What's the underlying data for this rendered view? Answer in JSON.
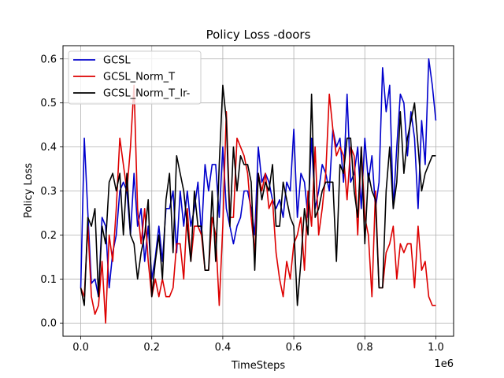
{
  "chart_data": {
    "type": "line",
    "title": "Policy Loss -doors",
    "xlabel": "TimeSteps",
    "ylabel": "Policy Loss",
    "x_offset_label": "1e6",
    "xlim": [
      -0.05,
      1.05
    ],
    "ylim": [
      -0.03,
      0.63
    ],
    "xticks": [
      0.0,
      0.2,
      0.4,
      0.6,
      0.8,
      1.0
    ],
    "xtick_labels": [
      "0.0",
      "0.2",
      "0.4",
      "0.6",
      "0.8",
      "1.0"
    ],
    "yticks": [
      0.0,
      0.1,
      0.2,
      0.3,
      0.4,
      0.5,
      0.6
    ],
    "ytick_labels": [
      "0.0",
      "0.1",
      "0.2",
      "0.3",
      "0.4",
      "0.5",
      "0.6"
    ],
    "grid": true,
    "legend_position": "top-left",
    "x": [
      0.0,
      0.01,
      0.02,
      0.03,
      0.04,
      0.05,
      0.06,
      0.07,
      0.08,
      0.09,
      0.1,
      0.11,
      0.12,
      0.13,
      0.14,
      0.15,
      0.16,
      0.17,
      0.18,
      0.19,
      0.2,
      0.21,
      0.22,
      0.23,
      0.24,
      0.25,
      0.26,
      0.27,
      0.28,
      0.29,
      0.3,
      0.31,
      0.32,
      0.33,
      0.34,
      0.35,
      0.36,
      0.37,
      0.38,
      0.39,
      0.4,
      0.41,
      0.42,
      0.43,
      0.44,
      0.45,
      0.46,
      0.47,
      0.48,
      0.49,
      0.5,
      0.51,
      0.52,
      0.53,
      0.54,
      0.55,
      0.56,
      0.57,
      0.58,
      0.59,
      0.6,
      0.61,
      0.62,
      0.63,
      0.64,
      0.65,
      0.66,
      0.67,
      0.68,
      0.69,
      0.7,
      0.71,
      0.72,
      0.73,
      0.74,
      0.75,
      0.76,
      0.77,
      0.78,
      0.79,
      0.8,
      0.81,
      0.82,
      0.83,
      0.84,
      0.85,
      0.86,
      0.87,
      0.88,
      0.89,
      0.9,
      0.91,
      0.92,
      0.93,
      0.94,
      0.95,
      0.96,
      0.97,
      0.98,
      0.99,
      1.0
    ],
    "series": [
      {
        "name": "GCSL",
        "color": "#0000cc",
        "values": [
          0.08,
          0.42,
          0.25,
          0.09,
          0.1,
          0.06,
          0.24,
          0.22,
          0.08,
          0.16,
          0.2,
          0.3,
          0.32,
          0.3,
          0.2,
          0.34,
          0.22,
          0.26,
          0.14,
          0.22,
          0.1,
          0.15,
          0.22,
          0.14,
          0.26,
          0.26,
          0.3,
          0.16,
          0.3,
          0.22,
          0.3,
          0.22,
          0.26,
          0.32,
          0.2,
          0.36,
          0.3,
          0.36,
          0.36,
          0.24,
          0.4,
          0.26,
          0.22,
          0.18,
          0.22,
          0.24,
          0.3,
          0.3,
          0.26,
          0.2,
          0.4,
          0.32,
          0.34,
          0.32,
          0.28,
          0.26,
          0.28,
          0.24,
          0.32,
          0.3,
          0.44,
          0.24,
          0.34,
          0.32,
          0.24,
          0.42,
          0.26,
          0.3,
          0.36,
          0.34,
          0.3,
          0.44,
          0.4,
          0.42,
          0.32,
          0.52,
          0.32,
          0.34,
          0.4,
          0.26,
          0.42,
          0.32,
          0.38,
          0.26,
          0.32,
          0.58,
          0.48,
          0.54,
          0.26,
          0.4,
          0.52,
          0.5,
          0.38,
          0.48,
          0.42,
          0.26,
          0.46,
          0.36,
          0.6,
          0.54,
          0.46
        ]
      },
      {
        "name": "GCSL_Norm_T",
        "color": "#dd0000",
        "values": [
          0.08,
          0.06,
          0.22,
          0.06,
          0.02,
          0.04,
          0.14,
          0.0,
          0.2,
          0.14,
          0.26,
          0.42,
          0.36,
          0.3,
          0.4,
          0.54,
          0.26,
          0.18,
          0.26,
          0.14,
          0.06,
          0.1,
          0.06,
          0.1,
          0.06,
          0.06,
          0.08,
          0.18,
          0.18,
          0.1,
          0.26,
          0.14,
          0.22,
          0.22,
          0.2,
          0.12,
          0.12,
          0.24,
          0.2,
          0.04,
          0.22,
          0.48,
          0.24,
          0.24,
          0.42,
          0.4,
          0.38,
          0.34,
          0.24,
          0.16,
          0.34,
          0.3,
          0.34,
          0.26,
          0.28,
          0.16,
          0.1,
          0.06,
          0.14,
          0.1,
          0.18,
          0.2,
          0.24,
          0.12,
          0.3,
          0.22,
          0.4,
          0.2,
          0.26,
          0.34,
          0.52,
          0.44,
          0.38,
          0.4,
          0.38,
          0.28,
          0.4,
          0.38,
          0.2,
          0.4,
          0.24,
          0.2,
          0.06,
          0.3,
          0.08,
          0.08,
          0.16,
          0.18,
          0.22,
          0.1,
          0.18,
          0.16,
          0.18,
          0.18,
          0.08,
          0.22,
          0.12,
          0.14,
          0.06,
          0.04,
          0.04
        ]
      },
      {
        "name": "GCSL_Norm_T_lr-",
        "color": "#000000",
        "values": [
          0.08,
          0.04,
          0.24,
          0.22,
          0.26,
          0.06,
          0.22,
          0.18,
          0.32,
          0.34,
          0.3,
          0.34,
          0.2,
          0.34,
          0.2,
          0.18,
          0.1,
          0.16,
          0.2,
          0.28,
          0.06,
          0.14,
          0.2,
          0.1,
          0.28,
          0.34,
          0.16,
          0.38,
          0.34,
          0.3,
          0.22,
          0.14,
          0.3,
          0.22,
          0.22,
          0.12,
          0.12,
          0.3,
          0.14,
          0.36,
          0.54,
          0.46,
          0.22,
          0.4,
          0.3,
          0.38,
          0.36,
          0.36,
          0.32,
          0.12,
          0.34,
          0.28,
          0.32,
          0.3,
          0.36,
          0.22,
          0.22,
          0.32,
          0.28,
          0.24,
          0.22,
          0.04,
          0.14,
          0.26,
          0.2,
          0.52,
          0.24,
          0.26,
          0.3,
          0.32,
          0.32,
          0.32,
          0.14,
          0.36,
          0.34,
          0.42,
          0.42,
          0.3,
          0.24,
          0.4,
          0.18,
          0.34,
          0.3,
          0.28,
          0.08,
          0.08,
          0.3,
          0.4,
          0.26,
          0.32,
          0.48,
          0.34,
          0.42,
          0.46,
          0.5,
          0.4,
          0.3,
          0.34,
          0.36,
          0.38,
          0.38
        ]
      }
    ]
  }
}
